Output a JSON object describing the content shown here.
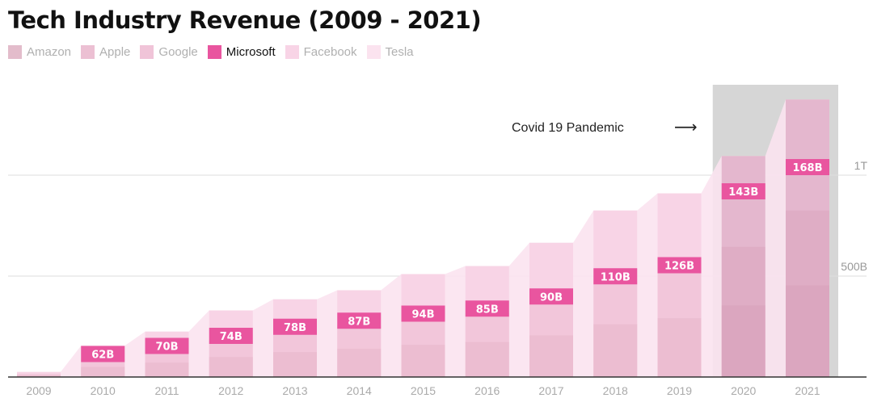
{
  "chart_data": {
    "type": "area",
    "title": "Tech Industry Revenue (2009 - 2021)",
    "highlighted_series": "Microsoft",
    "legend": [
      {
        "name": "Amazon",
        "color": "#e3bccb"
      },
      {
        "name": "Apple",
        "color": "#ecc0d3"
      },
      {
        "name": "Google",
        "color": "#f0c4d8"
      },
      {
        "name": "Microsoft",
        "color": "#e9559f"
      },
      {
        "name": "Facebook",
        "color": "#f8d4e6"
      },
      {
        "name": "Tesla",
        "color": "#fbe3ef"
      }
    ],
    "categories": [
      "2009",
      "2010",
      "2011",
      "2012",
      "2013",
      "2014",
      "2015",
      "2016",
      "2017",
      "2018",
      "2019",
      "2020",
      "2021"
    ],
    "microsoft_labels": [
      "",
      "62B",
      "70B",
      "74B",
      "78B",
      "87B",
      "94B",
      "85B",
      "90B",
      "110B",
      "126B",
      "143B",
      "168B"
    ],
    "totals": [
      25,
      155,
      225,
      330,
      385,
      430,
      510,
      550,
      665,
      825,
      910,
      1095,
      1375
    ],
    "tiers": [
      15,
      90,
      130,
      180,
      225,
      255,
      290,
      315,
      375,
      475,
      530,
      645,
      825
    ],
    "y_ticks": [
      {
        "value": 500,
        "label": "500B"
      },
      {
        "value": 1000,
        "label": "1T"
      }
    ],
    "ylim": [
      0,
      1440
    ],
    "annotation": {
      "text": "Covid 19 Pandemic",
      "arrow": "⟶",
      "highlight_categories": [
        "2020",
        "2021"
      ]
    },
    "grid": true,
    "legend_position": "top-left",
    "colors": {
      "microsoft": "#e9559f",
      "facebook": "#f8d4e6",
      "tesla": "#fbe3ef",
      "stack_top": "#f2c6da",
      "stack_bottom": "#e7b7cb",
      "highlight_band": "#cfcfcf"
    }
  }
}
